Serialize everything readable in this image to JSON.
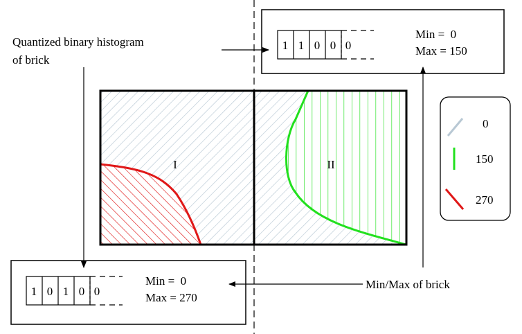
{
  "annotations": {
    "histogram_label_line1": "Quantized binary histogram",
    "histogram_label_line2": "of brick",
    "minmax_label": "Min/Max of brick"
  },
  "regions": {
    "left": "I",
    "right": "II"
  },
  "brick_top": {
    "bits": [
      "1",
      "1",
      "0",
      "0",
      "0"
    ],
    "min_text": "Min =  0",
    "max_text": "Max = 150"
  },
  "brick_bottom": {
    "bits": [
      "1",
      "0",
      "1",
      "0",
      "0"
    ],
    "min_text": "Min =  0",
    "max_text": "Max = 270"
  },
  "legend": {
    "items": [
      {
        "label": "0",
        "color": "#b8c8d4"
      },
      {
        "label": "150",
        "color": "#22e01e"
      },
      {
        "label": "270",
        "color": "#e01818"
      }
    ]
  }
}
